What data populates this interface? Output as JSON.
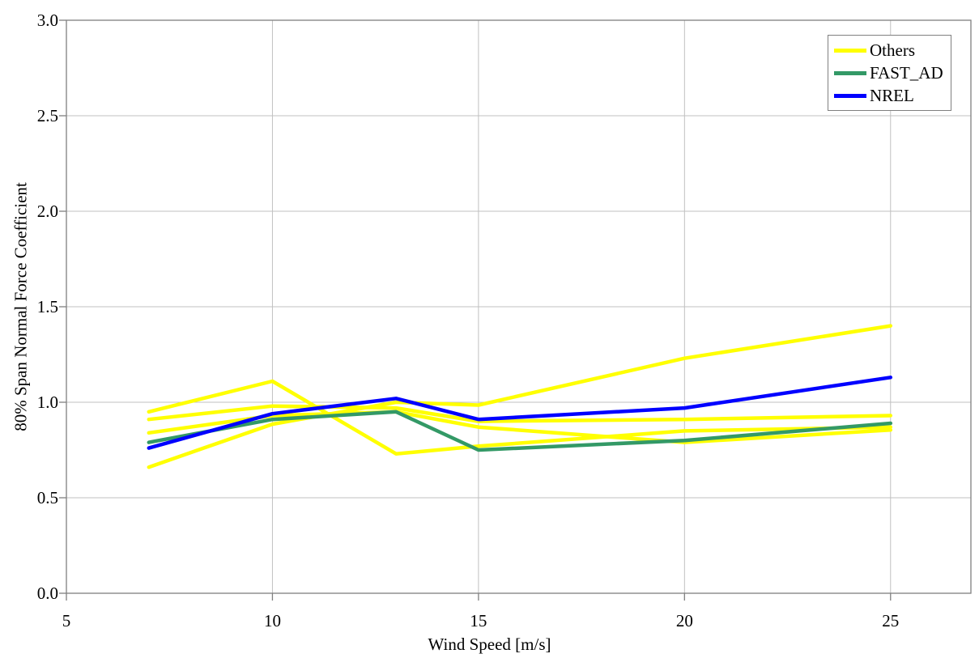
{
  "chart_data": {
    "type": "line",
    "title": "",
    "xlabel": "Wind Speed [m/s]",
    "ylabel": "80% Span Normal Force Coefficient",
    "x": [
      7,
      10,
      13,
      15,
      20,
      25
    ],
    "xlim": [
      5,
      26.95
    ],
    "ylim": [
      0,
      3
    ],
    "x_ticks": [
      5,
      10,
      15,
      20,
      25
    ],
    "x_tick_labels": [
      "5",
      "10",
      "15",
      "20",
      "25"
    ],
    "x_gridlines": [
      10,
      15,
      20,
      25
    ],
    "y_ticks": [
      0,
      0.5,
      1,
      1.5,
      2,
      2.5,
      3
    ],
    "y_tick_labels": [
      "0.0",
      "0.5",
      "1.0",
      "1.5",
      "2.0",
      "2.5",
      "3.0"
    ],
    "grid": true,
    "legend_position": "top-right",
    "series": [
      {
        "name": "Others",
        "color": "#FFFF00",
        "values": [
          0.95,
          1.11,
          0.73,
          0.77,
          0.85,
          0.87
        ]
      },
      {
        "name": "Others",
        "color": "#FFFF00",
        "values": [
          0.91,
          0.98,
          0.97,
          0.9,
          0.91,
          0.93
        ]
      },
      {
        "name": "Others",
        "color": "#FFFF00",
        "values": [
          0.84,
          0.93,
          0.95,
          0.87,
          0.79,
          0.855
        ]
      },
      {
        "name": "Others",
        "color": "#FFFF00",
        "values": [
          0.66,
          0.885,
          1.0,
          0.985,
          1.23,
          1.4
        ]
      },
      {
        "name": "FAST_AD",
        "color": "#339966",
        "values": [
          0.79,
          0.91,
          0.95,
          0.75,
          0.8,
          0.89
        ]
      },
      {
        "name": "NREL",
        "color": "#0000FF",
        "values": [
          0.76,
          0.94,
          1.02,
          0.91,
          0.97,
          1.13
        ]
      }
    ],
    "legend": [
      {
        "label": "Others",
        "color": "#FFFF00"
      },
      {
        "label": "FAST_AD",
        "color": "#339966"
      },
      {
        "label": "NREL",
        "color": "#0000FF"
      }
    ]
  },
  "colors": {
    "background": "#FFFFFF",
    "gridline": "#C0C0C0",
    "axis_border": "#808080",
    "text": "#000000"
  }
}
